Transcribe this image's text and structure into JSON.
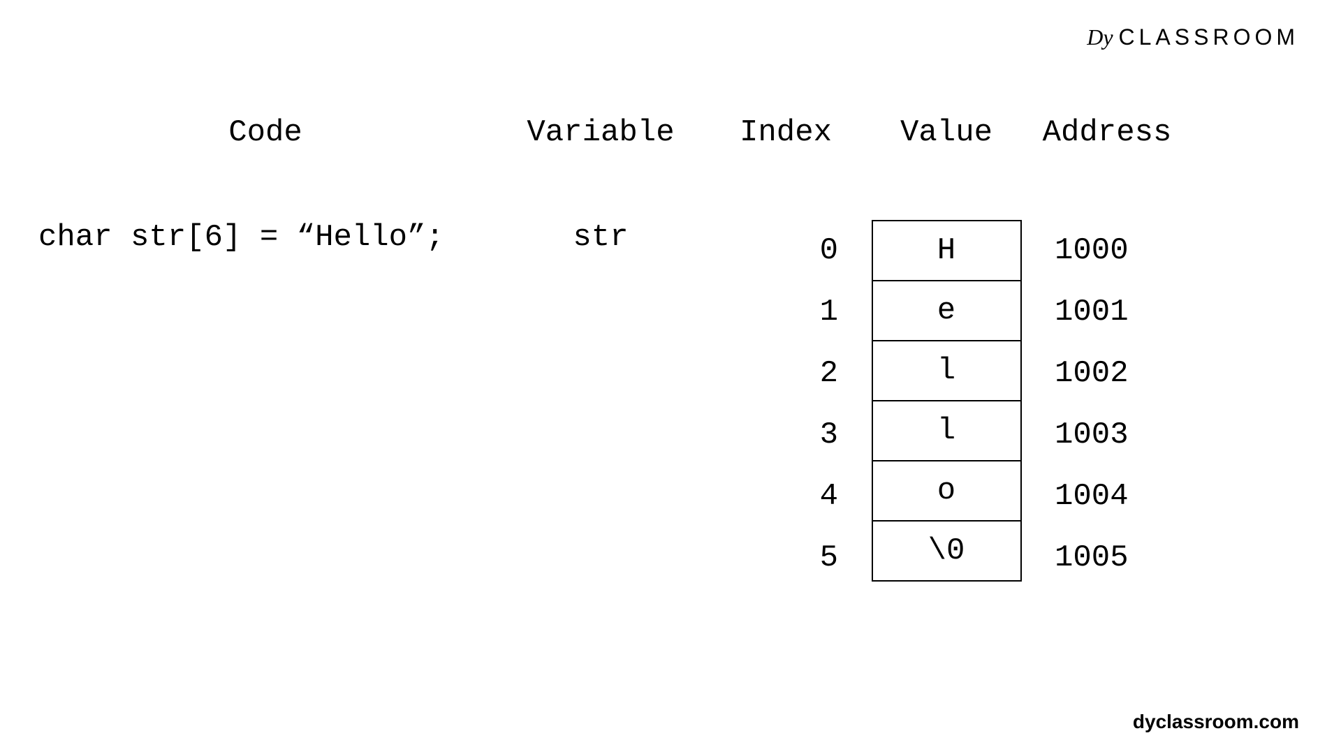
{
  "logo": {
    "icon": "Dy",
    "text": "CLASSROOM"
  },
  "headers": {
    "code": "Code",
    "variable": "Variable",
    "index": "Index",
    "value": "Value",
    "address": "Address"
  },
  "code_line": "char str[6] = “Hello”;",
  "variable_name": "str",
  "memory": {
    "rows": [
      {
        "index": "0",
        "value": "H",
        "address": "1000"
      },
      {
        "index": "1",
        "value": "e",
        "address": "1001"
      },
      {
        "index": "2",
        "value": "l",
        "address": "1002"
      },
      {
        "index": "3",
        "value": "l",
        "address": "1003"
      },
      {
        "index": "4",
        "value": "o",
        "address": "1004"
      },
      {
        "index": "5",
        "value": "\\0",
        "address": "1005"
      }
    ]
  },
  "footer": "dyclassroom.com",
  "styling": {
    "background_color": "#ffffff",
    "text_color": "#000000",
    "border_color": "#000000",
    "font_family": "Courier New",
    "header_fontsize": 44,
    "body_fontsize": 44,
    "logo_fontsize": 32,
    "footer_fontsize": 28,
    "value_box_width": 215,
    "value_box_height": 88,
    "border_width": 2
  }
}
